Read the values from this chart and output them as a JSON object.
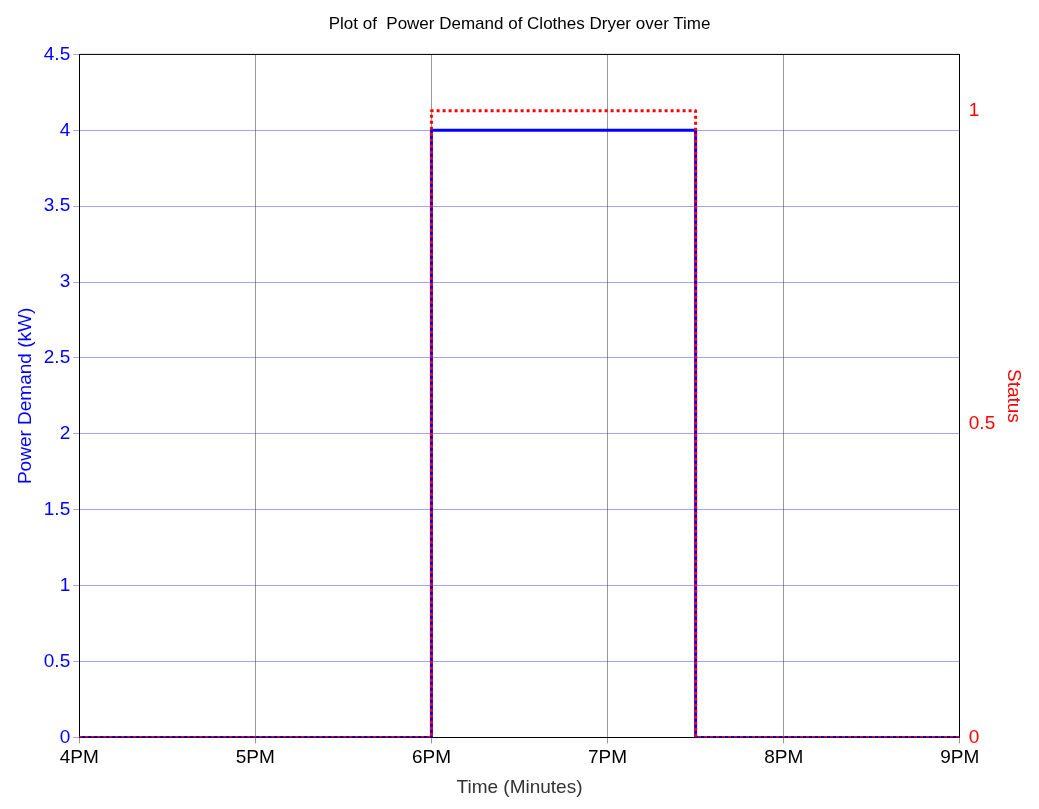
{
  "chart_data": {
    "type": "step",
    "title": "Plot of  Power Demand of Clothes Dryer over Time",
    "xlabel": "Time (Minutes)",
    "ylabel": "Power Demand (kW)",
    "y2label": "Status",
    "series": [
      {
        "color": "#0000ff",
        "x": [
          4,
          6,
          7.5,
          9
        ],
        "values": [
          0,
          4,
          0,
          0
        ],
        "line_style": "solid"
      },
      {
        "color": "#ff0000",
        "x": [
          4,
          6,
          7.5,
          9
        ],
        "values": [
          0,
          1,
          0,
          0
        ],
        "line_style": "dotted",
        "axis": "y2"
      }
    ],
    "xlim": [
      4,
      9
    ],
    "xticks": [
      {
        "value": 4,
        "label": "4PM"
      },
      {
        "value": 5,
        "label": "5PM"
      },
      {
        "value": 6,
        "label": "6PM"
      },
      {
        "value": 7,
        "label": "7PM"
      },
      {
        "value": 8,
        "label": "8PM"
      },
      {
        "value": 9,
        "label": "9PM"
      }
    ],
    "ylim": [
      0,
      4.5
    ],
    "yticks": [
      0,
      0.5,
      1,
      1.5,
      2,
      2.5,
      3,
      3.5,
      4,
      4.5
    ],
    "y2lim": [
      0,
      1.09
    ],
    "y2ticks": [
      0,
      0.5,
      1
    ],
    "grid": true,
    "legend": false
  }
}
